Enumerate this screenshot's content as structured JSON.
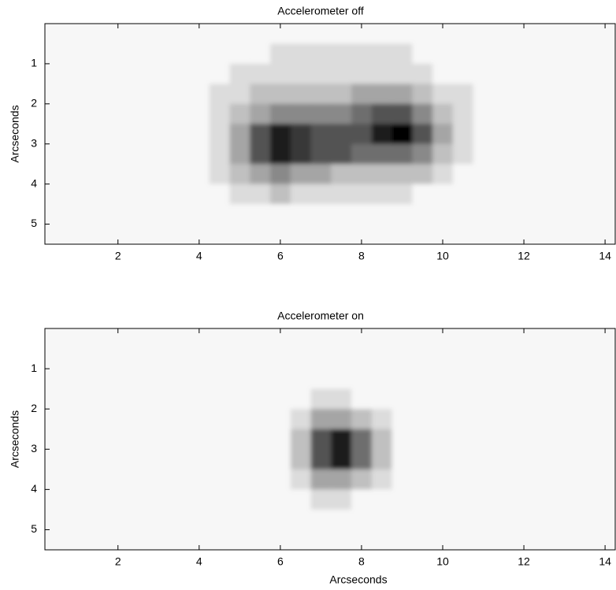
{
  "chart_data": [
    {
      "type": "heatmap",
      "title": "Accelerometer off",
      "ylabel": "Arcseconds",
      "xlim": [
        0.2,
        14.25
      ],
      "ylim": [
        5.5,
        0
      ],
      "xticks": [
        2,
        4,
        6,
        8,
        10,
        12,
        14
      ],
      "yticks": [
        1,
        2,
        3,
        4,
        5
      ],
      "xrange": [
        0.25,
        14.25
      ],
      "yrange": [
        0,
        5.5
      ],
      "colormap": "gray_r",
      "clim": [
        0,
        9
      ],
      "z": [
        [
          0,
          0,
          0,
          0,
          0,
          0,
          0,
          0,
          0,
          0,
          0,
          0,
          0,
          0,
          0,
          0,
          0,
          0,
          0,
          0,
          0,
          0,
          0,
          0,
          0,
          0,
          0,
          0
        ],
        [
          0,
          0,
          0,
          0,
          0,
          0,
          0,
          0,
          0,
          0,
          0,
          1,
          1,
          1,
          1,
          1,
          1,
          1,
          0,
          0,
          0,
          0,
          0,
          0,
          0,
          0,
          0,
          0
        ],
        [
          0,
          0,
          0,
          0,
          0,
          0,
          0,
          0,
          0,
          1,
          1,
          1,
          1,
          1,
          1,
          1,
          1,
          1,
          1,
          0,
          0,
          0,
          0,
          0,
          0,
          0,
          0,
          0
        ],
        [
          0,
          0,
          0,
          0,
          0,
          0,
          0,
          0,
          1,
          1,
          2,
          2,
          2,
          2,
          2,
          3,
          3,
          3,
          2,
          1,
          1,
          0,
          0,
          0,
          0,
          0,
          0,
          0
        ],
        [
          0,
          0,
          0,
          0,
          0,
          0,
          0,
          0,
          1,
          2,
          3,
          4,
          4,
          4,
          4,
          5,
          6,
          6,
          4,
          2,
          1,
          0,
          0,
          0,
          0,
          0,
          0,
          0
        ],
        [
          0,
          0,
          0,
          0,
          0,
          0,
          0,
          0,
          1,
          3,
          6,
          8,
          7,
          6,
          6,
          6,
          8,
          9,
          6,
          3,
          1,
          0,
          0,
          0,
          0,
          0,
          0,
          0
        ],
        [
          0,
          0,
          0,
          0,
          0,
          0,
          0,
          0,
          1,
          3,
          6,
          8,
          7,
          6,
          6,
          5,
          5,
          5,
          4,
          2,
          1,
          0,
          0,
          0,
          0,
          0,
          0,
          0
        ],
        [
          0,
          0,
          0,
          0,
          0,
          0,
          0,
          0,
          1,
          2,
          3,
          4,
          3,
          3,
          2,
          2,
          2,
          2,
          2,
          1,
          0,
          0,
          0,
          0,
          0,
          0,
          0,
          0
        ],
        [
          0,
          0,
          0,
          0,
          0,
          0,
          0,
          0,
          0,
          1,
          1,
          2,
          1,
          1,
          1,
          1,
          1,
          1,
          0,
          0,
          0,
          0,
          0,
          0,
          0,
          0,
          0,
          0
        ],
        [
          0,
          0,
          0,
          0,
          0,
          0,
          0,
          0,
          0,
          0,
          0,
          0,
          0,
          0,
          0,
          0,
          0,
          0,
          0,
          0,
          0,
          0,
          0,
          0,
          0,
          0,
          0,
          0
        ],
        [
          0,
          0,
          0,
          0,
          0,
          0,
          0,
          0,
          0,
          0,
          0,
          0,
          0,
          0,
          0,
          0,
          0,
          0,
          0,
          0,
          0,
          0,
          0,
          0,
          0,
          0,
          0,
          0
        ]
      ]
    },
    {
      "type": "heatmap",
      "title": "Accelerometer on",
      "xlabel": "Arcseconds",
      "ylabel": "Arcseconds",
      "xlim": [
        0.2,
        14.25
      ],
      "ylim": [
        5.5,
        0
      ],
      "xticks": [
        2,
        4,
        6,
        8,
        10,
        12,
        14
      ],
      "yticks": [
        1,
        2,
        3,
        4,
        5
      ],
      "xrange": [
        0.25,
        14.25
      ],
      "yrange": [
        0,
        5.5
      ],
      "colormap": "gray_r",
      "clim": [
        0,
        9
      ],
      "z": [
        [
          0,
          0,
          0,
          0,
          0,
          0,
          0,
          0,
          0,
          0,
          0,
          0,
          0,
          0,
          0,
          0,
          0,
          0,
          0,
          0,
          0,
          0,
          0,
          0,
          0,
          0,
          0,
          0
        ],
        [
          0,
          0,
          0,
          0,
          0,
          0,
          0,
          0,
          0,
          0,
          0,
          0,
          0,
          0,
          0,
          0,
          0,
          0,
          0,
          0,
          0,
          0,
          0,
          0,
          0,
          0,
          0,
          0
        ],
        [
          0,
          0,
          0,
          0,
          0,
          0,
          0,
          0,
          0,
          0,
          0,
          0,
          0,
          0,
          0,
          0,
          0,
          0,
          0,
          0,
          0,
          0,
          0,
          0,
          0,
          0,
          0,
          0
        ],
        [
          0,
          0,
          0,
          0,
          0,
          0,
          0,
          0,
          0,
          0,
          0,
          0,
          0,
          1,
          1,
          0,
          0,
          0,
          0,
          0,
          0,
          0,
          0,
          0,
          0,
          0,
          0,
          0
        ],
        [
          0,
          0,
          0,
          0,
          0,
          0,
          0,
          0,
          0,
          0,
          0,
          0,
          1,
          3,
          3,
          2,
          1,
          0,
          0,
          0,
          0,
          0,
          0,
          0,
          0,
          0,
          0,
          0
        ],
        [
          0,
          0,
          0,
          0,
          0,
          0,
          0,
          0,
          0,
          0,
          0,
          0,
          2,
          6,
          8,
          5,
          2,
          0,
          0,
          0,
          0,
          0,
          0,
          0,
          0,
          0,
          0,
          0
        ],
        [
          0,
          0,
          0,
          0,
          0,
          0,
          0,
          0,
          0,
          0,
          0,
          0,
          2,
          6,
          8,
          5,
          2,
          0,
          0,
          0,
          0,
          0,
          0,
          0,
          0,
          0,
          0,
          0
        ],
        [
          0,
          0,
          0,
          0,
          0,
          0,
          0,
          0,
          0,
          0,
          0,
          0,
          1,
          3,
          3,
          2,
          1,
          0,
          0,
          0,
          0,
          0,
          0,
          0,
          0,
          0,
          0,
          0
        ],
        [
          0,
          0,
          0,
          0,
          0,
          0,
          0,
          0,
          0,
          0,
          0,
          0,
          0,
          1,
          1,
          0,
          0,
          0,
          0,
          0,
          0,
          0,
          0,
          0,
          0,
          0,
          0,
          0
        ],
        [
          0,
          0,
          0,
          0,
          0,
          0,
          0,
          0,
          0,
          0,
          0,
          0,
          0,
          0,
          0,
          0,
          0,
          0,
          0,
          0,
          0,
          0,
          0,
          0,
          0,
          0,
          0,
          0
        ],
        [
          0,
          0,
          0,
          0,
          0,
          0,
          0,
          0,
          0,
          0,
          0,
          0,
          0,
          0,
          0,
          0,
          0,
          0,
          0,
          0,
          0,
          0,
          0,
          0,
          0,
          0,
          0,
          0
        ]
      ]
    }
  ]
}
